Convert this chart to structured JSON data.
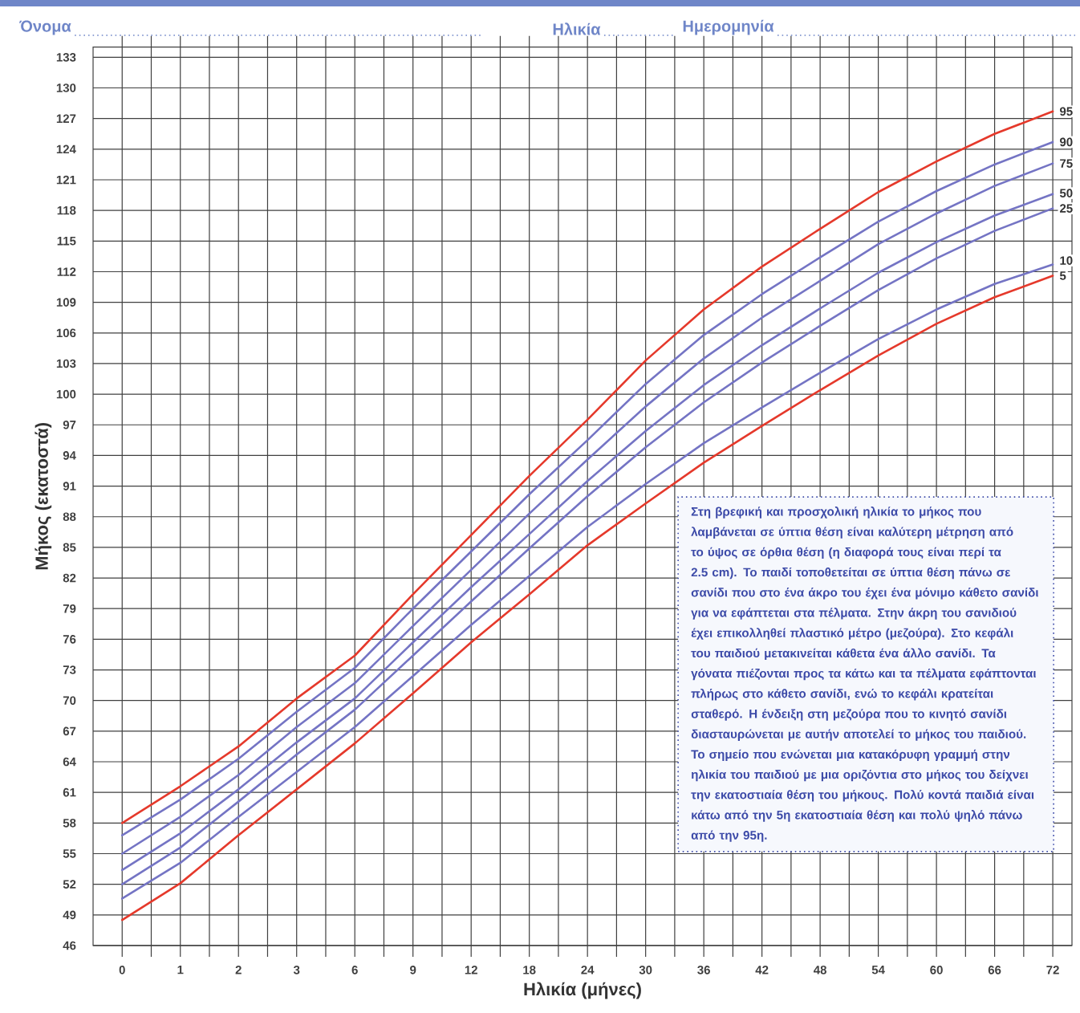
{
  "chart_data": {
    "type": "line",
    "xlabel": "Ηλικία (μήνες)",
    "ylabel": "Μήκος (εκατοστά)",
    "categories": [
      "0",
      "1",
      "2",
      "3",
      "6",
      "9",
      "12",
      "18",
      "24",
      "30",
      "36",
      "42",
      "48",
      "54",
      "60",
      "66",
      "72"
    ],
    "series": [
      {
        "name": "5",
        "color": "#e5392b",
        "values": [
          48.5,
          52.1,
          56.8,
          61.3,
          65.8,
          70.7,
          75.7,
          80.4,
          85.2,
          89.3,
          93.3,
          96.9,
          100.4,
          103.8,
          106.9,
          109.5,
          111.6
        ]
      },
      {
        "name": "10",
        "color": "#7474c4",
        "values": [
          50.6,
          54.1,
          58.6,
          63.0,
          67.4,
          72.4,
          77.4,
          82.2,
          87.0,
          91.2,
          95.2,
          98.7,
          102.1,
          105.4,
          108.3,
          110.8,
          112.7
        ]
      },
      {
        "name": "25",
        "color": "#7474c4",
        "values": [
          52.0,
          55.6,
          60.1,
          64.7,
          69.1,
          74.4,
          79.7,
          84.9,
          90.0,
          94.8,
          99.2,
          103.1,
          106.7,
          110.2,
          113.3,
          116.0,
          118.2
        ]
      },
      {
        "name": "50",
        "color": "#7474c4",
        "values": [
          53.4,
          57.0,
          61.3,
          65.9,
          70.2,
          75.7,
          81.1,
          86.3,
          91.5,
          96.4,
          100.9,
          104.8,
          108.4,
          111.9,
          114.9,
          117.5,
          119.6
        ]
      },
      {
        "name": "75",
        "color": "#7474c4",
        "values": [
          55.0,
          58.6,
          62.7,
          67.4,
          71.7,
          77.3,
          82.8,
          88.3,
          93.6,
          98.8,
          103.5,
          107.5,
          111.1,
          114.7,
          117.7,
          120.4,
          122.6
        ]
      },
      {
        "name": "90",
        "color": "#7474c4",
        "values": [
          56.8,
          60.3,
          64.3,
          68.9,
          73.2,
          79.0,
          84.6,
          90.2,
          95.5,
          101.0,
          105.8,
          109.8,
          113.4,
          116.9,
          119.9,
          122.5,
          124.7
        ]
      },
      {
        "name": "95",
        "color": "#e5392b",
        "values": [
          58.0,
          61.6,
          65.5,
          70.2,
          74.4,
          80.4,
          86.2,
          92.0,
          97.5,
          103.3,
          108.3,
          112.5,
          116.2,
          119.8,
          122.8,
          125.5,
          127.7
        ]
      }
    ],
    "ylim": [
      46,
      134
    ],
    "yticks": [
      46,
      49,
      52,
      55,
      58,
      61,
      64,
      67,
      70,
      73,
      76,
      79,
      82,
      85,
      88,
      91,
      94,
      97,
      100,
      103,
      106,
      109,
      112,
      115,
      118,
      121,
      124,
      127,
      130,
      133
    ],
    "grid": true,
    "annotations": [
      "Όνομα",
      "Ηλικία",
      "Ημερομηνία",
      "Στη βρεφική και προσχολική ηλικία το μήκος που λαμβάνεται σε ύπτια θέση είναι καλύτερη μέτρηση από το ύψος σε όρθια θέση (η διαφορά τους είναι περί τα 2.5 cm). Το παιδί τοποθετείται σε ύπτια θέση πάνω σε σανίδι που στο ένα άκρο του έχει ένα μόνιμο κάθετο σανίδι για να εφάπτεται στα πέλματα. Στην άκρη του σανιδιού έχει επικολληθεί πλαστικό μέτρο (μεζούρα). Στο κεφάλι του παιδιού μετακινείται κάθετα ένα άλλο σανίδι. Τα γόνατα πιέζονται προς τα κάτω και τα πέλματα εφάπτονται πλήρως στο κάθετο σανίδι, ενώ το κεφάλι κρατείται σταθερό. Η ένδειξη στη μεζούρα που το κινητό σανίδι διασταυρώνεται με αυτήν αποτελεί το μήκος του παιδιού. Το σημείο που ενώνεται μια κατακόρυφη γραμμή στην ηλικία του παιδιού με μια οριζόντια στο μήκος του δείχνει την εκατοστιαία θέση του μήκους. Πολύ κοντά παιδιά είναι κάτω από την 5η εκατοστιαία θέση και πολύ ψηλό πάνω από την 95η."
    ]
  }
}
